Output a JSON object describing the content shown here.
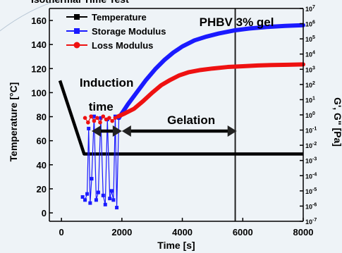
{
  "chart_data": {
    "type": "line",
    "title": "Isothermal Time Test",
    "xlabel": "Time [s]",
    "ylabel_left": "Temperature [°C]",
    "ylabel_right": "G', G\" [Pa]",
    "xlim": [
      -400,
      8000
    ],
    "ylim_left": [
      -7,
      170
    ],
    "ylim_right_log10": [
      -7,
      7
    ],
    "right_scale": "log",
    "x_ticks": [
      0,
      2000,
      4000,
      6000,
      8000
    ],
    "x_tick_labels": [
      "0",
      "2000",
      "4000",
      "6000",
      "8000"
    ],
    "y_left_ticks": [
      0,
      20,
      40,
      60,
      80,
      100,
      120,
      140,
      160
    ],
    "y_left_tick_labels": [
      "0",
      "20",
      "40",
      "60",
      "80",
      "100",
      "120",
      "140",
      "160"
    ],
    "y_right_tick_exponents": [
      -7,
      -6,
      -5,
      -4,
      -3,
      -2,
      -1,
      0,
      1,
      2,
      3,
      4,
      5,
      6,
      7
    ],
    "y_right_tick_labels": [
      "10-7",
      "10-6",
      "10-5",
      "10-4",
      "10-3",
      "10-2",
      "10-1",
      "100",
      "101",
      "102",
      "103",
      "104",
      "105",
      "106",
      "107"
    ],
    "legend": {
      "position": "top-left",
      "entries": [
        "Temperature",
        "Storage Modulus",
        "Loss Modulus"
      ]
    },
    "series": [
      {
        "name": "Temperature",
        "axis": "left",
        "color": "#000000",
        "x": [
          -50,
          750,
          8000
        ],
        "y": [
          110,
          49,
          49
        ]
      },
      {
        "name": "Storage Modulus",
        "axis": "right",
        "color": "#1a1aff",
        "points_x": [
          700,
          780,
          850,
          900,
          950,
          1000,
          1080,
          1150,
          1220,
          1300,
          1380,
          1450,
          1520,
          1600,
          1660,
          1720,
          1780,
          1830,
          1900
        ],
        "points_y": [
          -5.4,
          -5.6,
          -5.2,
          -0.9,
          -5.8,
          -4.2,
          -0.1,
          -5.6,
          -5.1,
          -0.2,
          -5.3,
          -5.9,
          -0.3,
          -5.5,
          -5.0,
          -5.6,
          -0.1,
          -6.1,
          -0.2
        ],
        "curve_x": [
          1900,
          2200,
          2500,
          2800,
          3100,
          3400,
          3700,
          4000,
          4400,
          4800,
          5200,
          5700,
          6200,
          6800,
          7400,
          8000
        ],
        "curve_y": [
          -0.2,
          0.7,
          1.5,
          2.3,
          3.0,
          3.6,
          4.1,
          4.5,
          4.9,
          5.15,
          5.35,
          5.55,
          5.68,
          5.78,
          5.85,
          5.9
        ]
      },
      {
        "name": "Loss Modulus",
        "axis": "right",
        "color": "#ee1111",
        "points_x": [
          780,
          880,
          980,
          1080,
          1180,
          1280,
          1380,
          1480,
          1580,
          1680,
          1780,
          1880
        ],
        "points_y": [
          -0.2,
          -0.5,
          -0.1,
          -0.4,
          -0.2,
          -0.5,
          -0.1,
          -0.3,
          -0.2,
          -0.4,
          -0.2,
          -0.1
        ],
        "curve_x": [
          1880,
          2100,
          2400,
          2700,
          3000,
          3300,
          3600,
          3900,
          4200,
          4600,
          5000,
          5500,
          6000,
          6500,
          7000,
          7500,
          8000
        ],
        "curve_y": [
          -0.1,
          0.1,
          0.4,
          0.9,
          1.45,
          1.95,
          2.3,
          2.6,
          2.8,
          2.95,
          3.05,
          3.15,
          3.2,
          3.25,
          3.28,
          3.3,
          3.32
        ]
      }
    ],
    "vertical_line": {
      "x": 5750,
      "label": "PHBV 3% gel"
    },
    "annotations": [
      {
        "text": "Induction",
        "x": 600,
        "y": 105
      },
      {
        "text": "time",
        "x": 900,
        "y": 85
      },
      {
        "text": "Gelation",
        "x": 3500,
        "y": 74
      }
    ],
    "arrows": [
      {
        "from": 1000,
        "to": 2000,
        "y": 68
      },
      {
        "from": 2000,
        "to": 5800,
        "y": 68
      }
    ]
  }
}
